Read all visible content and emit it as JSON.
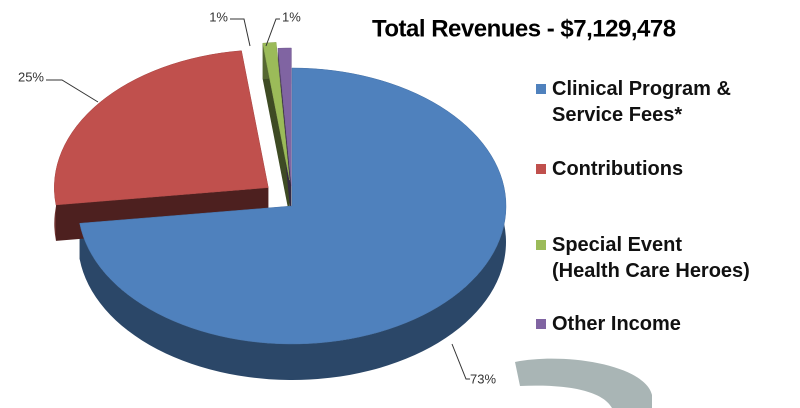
{
  "chart_data": {
    "type": "pie3d",
    "title": "Total Revenues - $7,129,478",
    "categories": [
      "Clinical Program & Service Fees*",
      "Contributions",
      "Special Event (Health Care Heroes)",
      "Other Income"
    ],
    "values": [
      73,
      25,
      1,
      1
    ],
    "value_labels": [
      "73%",
      "25%",
      "1%",
      "1%"
    ],
    "colors": [
      "#4f81bd",
      "#c0504d",
      "#9bbb59",
      "#8064a2"
    ],
    "legend": "right"
  }
}
